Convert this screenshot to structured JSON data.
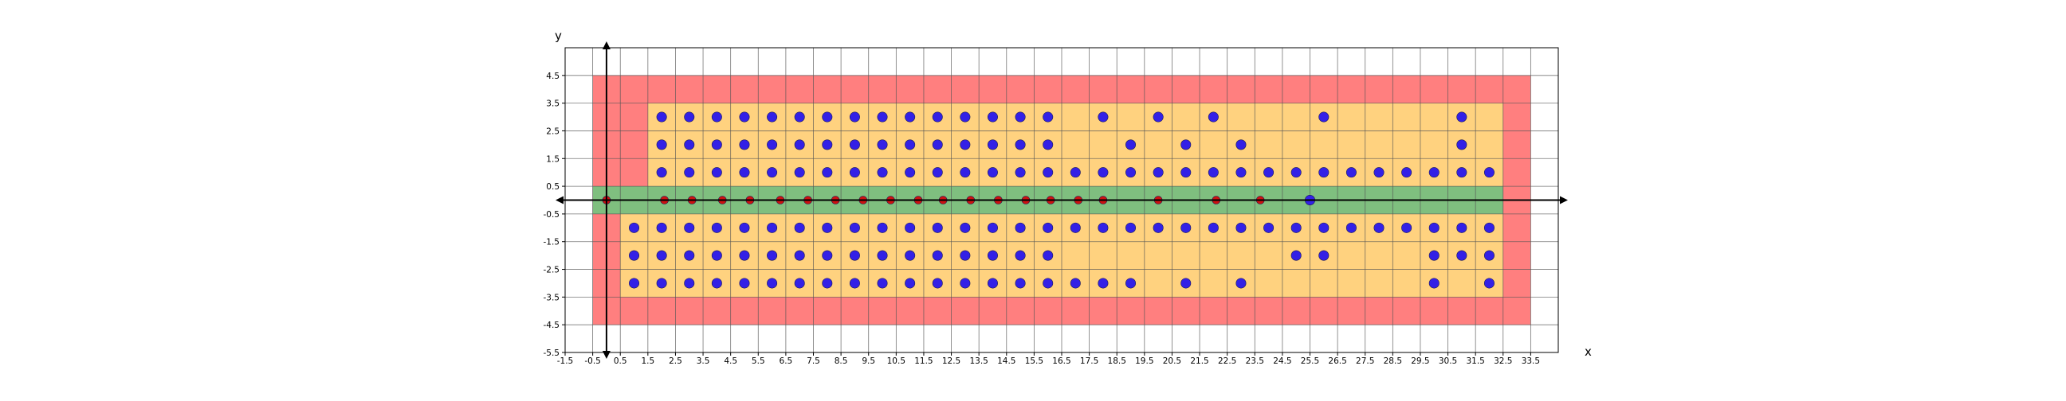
{
  "chart_data": {
    "type": "scatter",
    "xlabel": "x",
    "ylabel": "y",
    "xlim": [
      -1.5,
      34.5
    ],
    "ylim": [
      -5.5,
      5.5
    ],
    "grid": true,
    "xticks": [
      "-1.5",
      "-0.5",
      "0.5",
      "1.5",
      "2.5",
      "3.5",
      "4.5",
      "5.5",
      "6.5",
      "7.5",
      "8.5",
      "9.5",
      "10.5",
      "11.5",
      "12.5",
      "13.5",
      "14.5",
      "15.5",
      "16.5",
      "17.5",
      "18.5",
      "19.5",
      "20.5",
      "21.5",
      "22.5",
      "23.5",
      "24.5",
      "25.5",
      "26.5",
      "27.5",
      "28.5",
      "29.5",
      "30.5",
      "31.5",
      "32.5",
      "33.5"
    ],
    "yticks": [
      "4.5",
      "3.5",
      "2.5",
      "1.5",
      "0.5",
      "-0.5",
      "-1.5",
      "-2.5",
      "-3.5",
      "-4.5",
      "-5.5"
    ],
    "colors": {
      "outer_region": "#ff7f7f",
      "inner_region": "#ffd27f",
      "axis_band": "#7fbf7f",
      "blue_points": "#3320e6",
      "red_points": "#cc1111",
      "grid": "#555555"
    },
    "regions": [
      {
        "kind": "outer",
        "x_range": [
          -0.5,
          33.5
        ],
        "y_range": [
          -4.5,
          4.5
        ]
      },
      {
        "kind": "inner_upper",
        "x_range": [
          1.5,
          32.5
        ],
        "y_range": [
          0.5,
          3.5
        ]
      },
      {
        "kind": "inner_lower",
        "x_range": [
          0.5,
          32.5
        ],
        "y_range": [
          -3.5,
          -0.5
        ]
      },
      {
        "kind": "axis_band",
        "x_range": [
          -0.5,
          32.5
        ],
        "y_range": [
          -0.5,
          0.5
        ]
      }
    ],
    "series": [
      {
        "color": "blue",
        "rows": [
          {
            "y": 3,
            "x": [
              2,
              3,
              4,
              5,
              6,
              7,
              8,
              9,
              10,
              11,
              12,
              13,
              14,
              15,
              16,
              18,
              20,
              22,
              26,
              31
            ]
          },
          {
            "y": 2,
            "x": [
              2,
              3,
              4,
              5,
              6,
              7,
              8,
              9,
              10,
              11,
              12,
              13,
              14,
              15,
              16,
              19,
              21,
              23,
              31
            ]
          },
          {
            "y": 1,
            "x": [
              2,
              3,
              4,
              5,
              6,
              7,
              8,
              9,
              10,
              11,
              12,
              13,
              14,
              15,
              16,
              17,
              18,
              19,
              20,
              21,
              22,
              23,
              24,
              25,
              26,
              27,
              28,
              29,
              30,
              31,
              32
            ]
          },
          {
            "y": 0,
            "x": [
              25.5
            ]
          },
          {
            "y": -1,
            "x": [
              1,
              2,
              3,
              4,
              5,
              6,
              7,
              8,
              9,
              10,
              11,
              12,
              13,
              14,
              15,
              16,
              17,
              18,
              19,
              20,
              21,
              22,
              23,
              24,
              25,
              26,
              27,
              28,
              29,
              30,
              31,
              32
            ]
          },
          {
            "y": -2,
            "x": [
              1,
              2,
              3,
              4,
              5,
              6,
              7,
              8,
              9,
              10,
              11,
              12,
              13,
              14,
              15,
              16,
              25,
              26,
              30,
              31,
              32
            ]
          },
          {
            "y": -3,
            "x": [
              1,
              2,
              3,
              4,
              5,
              6,
              7,
              8,
              9,
              10,
              11,
              12,
              13,
              14,
              15,
              16,
              17,
              18,
              19,
              21,
              23,
              30,
              32
            ]
          }
        ]
      },
      {
        "color": "red",
        "rows": [
          {
            "y": 0,
            "x": [
              0,
              2.1,
              3.1,
              4.2,
              5.2,
              6.3,
              7.3,
              8.3,
              9.3,
              10.3,
              11.3,
              12.2,
              13.2,
              14.2,
              15.2,
              16.1,
              17.1,
              18,
              20,
              22.1,
              23.7
            ]
          }
        ]
      }
    ]
  }
}
